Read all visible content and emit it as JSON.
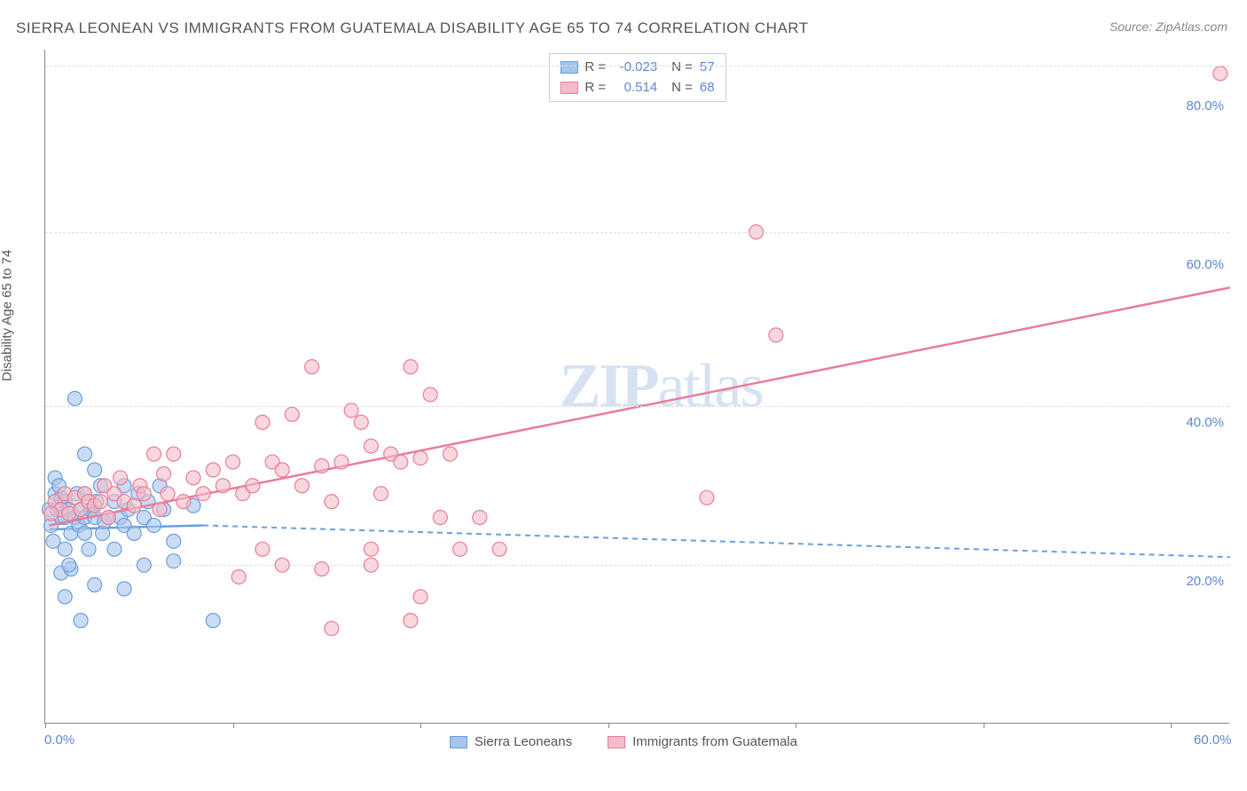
{
  "title": "SIERRA LEONEAN VS IMMIGRANTS FROM GUATEMALA DISABILITY AGE 65 TO 74 CORRELATION CHART",
  "source": "Source: ZipAtlas.com",
  "yaxis_title": "Disability Age 65 to 74",
  "watermark_bold": "ZIP",
  "watermark_rest": "atlas",
  "chart": {
    "type": "scatter",
    "xlim": [
      0,
      60
    ],
    "ylim": [
      0,
      85
    ],
    "xticks": [
      {
        "pos": 0.0,
        "label": "0.0%"
      },
      {
        "pos": 60.0,
        "label": "60.0%"
      }
    ],
    "xtick_marks": [
      0,
      9.5,
      19,
      28.5,
      38,
      47.5,
      57
    ],
    "yticks": [
      {
        "pos": 20,
        "label": "20.0%"
      },
      {
        "pos": 40,
        "label": "40.0%"
      },
      {
        "pos": 60,
        "label": "60.0%"
      },
      {
        "pos": 80,
        "label": "80.0%"
      }
    ],
    "grid_y": [
      20,
      40,
      62,
      83
    ],
    "grid_color": "#dddddd",
    "background_color": "#ffffff",
    "series": [
      {
        "name": "Sierra Leoneans",
        "color_fill": "#a6c5ec",
        "color_stroke": "#6a9edc",
        "fill_opacity": 0.6,
        "marker_radius": 8,
        "R": "-0.023",
        "N": "57",
        "trend": {
          "x1": 0.2,
          "y1": 24.5,
          "x2": 8,
          "y2": 25,
          "solid": true
        },
        "trend_ext": {
          "x1": 8,
          "y1": 25,
          "x2": 60,
          "y2": 21,
          "dashed": true
        },
        "points": [
          [
            0.2,
            27
          ],
          [
            0.3,
            25
          ],
          [
            0.4,
            23
          ],
          [
            0.5,
            29
          ],
          [
            0.6,
            27
          ],
          [
            0.8,
            26
          ],
          [
            0.8,
            28.5
          ],
          [
            0.5,
            31
          ],
          [
            0.7,
            30
          ],
          [
            1.0,
            28
          ],
          [
            1.0,
            26
          ],
          [
            1.2,
            27
          ],
          [
            1.0,
            22
          ],
          [
            1.3,
            24
          ],
          [
            1.5,
            26
          ],
          [
            1.6,
            29
          ],
          [
            1.7,
            25
          ],
          [
            1.8,
            27
          ],
          [
            2.0,
            26
          ],
          [
            2.0,
            29
          ],
          [
            2.0,
            24
          ],
          [
            2.2,
            22
          ],
          [
            2.3,
            27
          ],
          [
            2.5,
            26
          ],
          [
            2.6,
            28
          ],
          [
            2.8,
            30
          ],
          [
            2.9,
            24
          ],
          [
            3.0,
            25.5
          ],
          [
            3.2,
            26
          ],
          [
            3.5,
            28
          ],
          [
            3.5,
            22
          ],
          [
            3.8,
            26
          ],
          [
            4.0,
            30
          ],
          [
            4.0,
            25
          ],
          [
            4.2,
            27
          ],
          [
            4.5,
            24
          ],
          [
            4.7,
            29
          ],
          [
            5.0,
            26
          ],
          [
            5.2,
            28
          ],
          [
            5.5,
            25
          ],
          [
            5.8,
            30
          ],
          [
            6.0,
            27
          ],
          [
            6.5,
            23
          ],
          [
            1.5,
            41
          ],
          [
            2.0,
            34
          ],
          [
            2.5,
            32
          ],
          [
            0.8,
            19
          ],
          [
            1.3,
            19.5
          ],
          [
            2.5,
            17.5
          ],
          [
            4.0,
            17
          ],
          [
            1.8,
            13
          ],
          [
            1.0,
            16
          ],
          [
            1.2,
            20
          ],
          [
            8.5,
            13
          ],
          [
            6.5,
            20.5
          ],
          [
            5.0,
            20
          ],
          [
            7.5,
            27.5
          ]
        ]
      },
      {
        "name": "Immigrants from Guatemala",
        "color_fill": "#f4bcc7",
        "color_stroke": "#ea7c9a",
        "fill_opacity": 0.6,
        "marker_radius": 8,
        "R": "0.514",
        "N": "68",
        "trend": {
          "x1": 0.2,
          "y1": 25,
          "x2": 60,
          "y2": 55,
          "solid": true
        },
        "points": [
          [
            0.5,
            28
          ],
          [
            0.8,
            27
          ],
          [
            1.0,
            29
          ],
          [
            1.2,
            26.5
          ],
          [
            1.5,
            28.5
          ],
          [
            1.8,
            27
          ],
          [
            2.0,
            29
          ],
          [
            2.2,
            28
          ],
          [
            2.5,
            27.5
          ],
          [
            2.8,
            28
          ],
          [
            3.0,
            30
          ],
          [
            3.2,
            26
          ],
          [
            3.5,
            29
          ],
          [
            3.8,
            31
          ],
          [
            4.0,
            28
          ],
          [
            4.5,
            27.5
          ],
          [
            4.8,
            30
          ],
          [
            5.0,
            29
          ],
          [
            5.5,
            34
          ],
          [
            5.8,
            27
          ],
          [
            6.0,
            31.5
          ],
          [
            6.2,
            29
          ],
          [
            6.5,
            34
          ],
          [
            7.0,
            28
          ],
          [
            7.5,
            31
          ],
          [
            8.0,
            29
          ],
          [
            8.5,
            32
          ],
          [
            9.0,
            30
          ],
          [
            9.5,
            33
          ],
          [
            10.0,
            29
          ],
          [
            10.5,
            30
          ],
          [
            11.0,
            38
          ],
          [
            11.5,
            33
          ],
          [
            12.0,
            32
          ],
          [
            12.5,
            39
          ],
          [
            13.0,
            30
          ],
          [
            13.5,
            45
          ],
          [
            14.0,
            32.5
          ],
          [
            14.5,
            28
          ],
          [
            15.0,
            33
          ],
          [
            15.5,
            39.5
          ],
          [
            16.0,
            38
          ],
          [
            16.5,
            35
          ],
          [
            17.0,
            29
          ],
          [
            17.5,
            34
          ],
          [
            18.0,
            33
          ],
          [
            18.5,
            45
          ],
          [
            19.0,
            33.5
          ],
          [
            19.5,
            41.5
          ],
          [
            20.0,
            26
          ],
          [
            20.5,
            34
          ],
          [
            21.0,
            22
          ],
          [
            22.0,
            26
          ],
          [
            23.0,
            22
          ],
          [
            14.5,
            12
          ],
          [
            18.5,
            13
          ],
          [
            9.8,
            18.5
          ],
          [
            12.0,
            20
          ],
          [
            16.5,
            20
          ],
          [
            19.0,
            16
          ],
          [
            33.5,
            28.5
          ],
          [
            36.0,
            62
          ],
          [
            37.0,
            49
          ],
          [
            14.0,
            19.5
          ],
          [
            11.0,
            22
          ],
          [
            16.5,
            22
          ],
          [
            59.5,
            82
          ],
          [
            0.3,
            26.5
          ]
        ]
      }
    ]
  },
  "colors": {
    "title_text": "#555555",
    "axis_text": "#555555",
    "tick_label": "#5b87d6",
    "source_text": "#888888",
    "watermark": "#d6e2f3"
  }
}
